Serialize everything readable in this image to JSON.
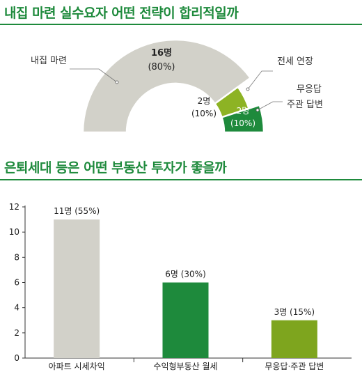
{
  "section1": {
    "title": "내집 마련 실수요자 어떤 전략이 합리적일까"
  },
  "section2": {
    "title": "은퇴세대 등은 어떤 부동산 투자가 좋을까"
  },
  "chart_data": [
    {
      "type": "pie",
      "shape": "semi-donut",
      "title": "",
      "slices": [
        {
          "label": "내집 마련",
          "count_label": "16명",
          "pct_label": "(80%)",
          "value": 16,
          "percent": 80,
          "color": "#d2d1c9"
        },
        {
          "label": "전세 연장",
          "count_label": "2명",
          "pct_label": "(10%)",
          "value": 2,
          "percent": 10,
          "color": "#8db324"
        },
        {
          "label": "무응답\n주관 답변",
          "count_label": "2명",
          "pct_label": "(10%)",
          "value": 2,
          "percent": 10,
          "color": "#1e8a3c"
        }
      ]
    },
    {
      "type": "bar",
      "title": "",
      "categories": [
        "아파트 시세차익",
        "수익형부동산 월세",
        "무응답·주관 답변"
      ],
      "values": [
        11,
        6,
        3
      ],
      "data_labels": [
        "11명 (55%)",
        "6명 (30%)",
        "3명 (15%)"
      ],
      "colors": [
        "#d2d1c9",
        "#1e8a3c",
        "#7ea51e"
      ],
      "ylim": [
        0,
        12
      ],
      "yticks": [
        0,
        2,
        4,
        6,
        8,
        10,
        12
      ],
      "grid": false,
      "xlabel": "",
      "ylabel": ""
    }
  ]
}
